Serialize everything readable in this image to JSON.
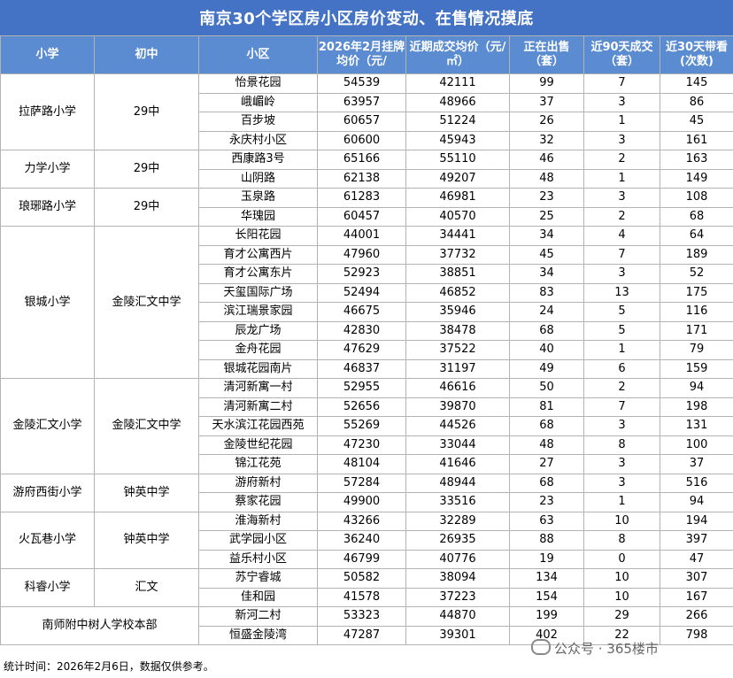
{
  "title": "南京30个学区房小区房价变动、在售情况摸底",
  "headers": {
    "primary": "小学",
    "middle": "初中",
    "community": "小区",
    "listing_price": "2026年2月挂牌均价（元/",
    "deal_price": "近期成交均价（元/㎡）",
    "on_sale": "正在出售（套）",
    "deals_90": "近90天成交（套）",
    "visits_30": "近30天带看(次数)"
  },
  "groups": [
    {
      "primary": "拉萨路小学",
      "middle": "29中",
      "rows": [
        [
          "怡景花园",
          "54539",
          "42111",
          "99",
          "7",
          "145"
        ],
        [
          "峨嵋岭",
          "63957",
          "48966",
          "37",
          "3",
          "86"
        ],
        [
          "百步坡",
          "60657",
          "51224",
          "26",
          "1",
          "45"
        ],
        [
          "永庆村小区",
          "60600",
          "45943",
          "32",
          "3",
          "161"
        ]
      ]
    },
    {
      "primary": "力学小学",
      "middle": "29中",
      "rows": [
        [
          "西康路3号",
          "65166",
          "55110",
          "46",
          "2",
          "163"
        ],
        [
          "山阴路",
          "62138",
          "49207",
          "48",
          "1",
          "149"
        ]
      ]
    },
    {
      "primary": "琅琊路小学",
      "middle": "29中",
      "rows": [
        [
          "玉泉路",
          "61283",
          "46981",
          "23",
          "3",
          "108"
        ],
        [
          "华瑰园",
          "60457",
          "40570",
          "25",
          "2",
          "68"
        ]
      ]
    },
    {
      "primary": "银城小学",
      "middle": "金陵汇文中学",
      "rows": [
        [
          "长阳花园",
          "44001",
          "34441",
          "34",
          "4",
          "64"
        ],
        [
          "育才公寓西片",
          "47960",
          "37732",
          "45",
          "7",
          "189"
        ],
        [
          "育才公寓东片",
          "52923",
          "38851",
          "34",
          "3",
          "52"
        ],
        [
          "天玺国际广场",
          "52494",
          "46852",
          "83",
          "13",
          "175"
        ],
        [
          "滨江瑞景家园",
          "46675",
          "35946",
          "24",
          "5",
          "116"
        ],
        [
          "辰龙广场",
          "42830",
          "38478",
          "68",
          "5",
          "171"
        ],
        [
          "金舟花园",
          "47629",
          "37522",
          "40",
          "1",
          "79"
        ],
        [
          "银城花园南片",
          "46837",
          "31197",
          "49",
          "6",
          "159"
        ]
      ]
    },
    {
      "primary": "金陵汇文小学",
      "middle": "金陵汇文中学",
      "rows": [
        [
          "清河新寓一村",
          "52955",
          "46616",
          "50",
          "2",
          "94"
        ],
        [
          "清河新寓二村",
          "52656",
          "39870",
          "81",
          "7",
          "198"
        ],
        [
          "天水滨江花园西苑",
          "55269",
          "44526",
          "68",
          "3",
          "131"
        ],
        [
          "金陵世纪花园",
          "47230",
          "33044",
          "48",
          "8",
          "100"
        ],
        [
          "锦江花苑",
          "48104",
          "41646",
          "27",
          "3",
          "37"
        ]
      ]
    },
    {
      "primary": "游府西街小学",
      "middle": "钟英中学",
      "rows": [
        [
          "游府新村",
          "57284",
          "48944",
          "68",
          "3",
          "516"
        ],
        [
          "蔡家花园",
          "49900",
          "33516",
          "23",
          "1",
          "94"
        ]
      ]
    },
    {
      "primary": "火瓦巷小学",
      "middle": "钟英中学",
      "rows": [
        [
          "淮海新村",
          "43266",
          "32289",
          "63",
          "10",
          "194"
        ],
        [
          "武学园小区",
          "36240",
          "26935",
          "88",
          "8",
          "397"
        ],
        [
          "益乐村小区",
          "46799",
          "40776",
          "19",
          "0",
          "47"
        ]
      ]
    },
    {
      "primary": "科睿小学",
      "middle": "汇文",
      "rows": [
        [
          "苏宁睿城",
          "50582",
          "38094",
          "134",
          "10",
          "307"
        ],
        [
          "佳和园",
          "41578",
          "37223",
          "154",
          "10",
          "167"
        ]
      ]
    },
    {
      "primary": "南师附中树人学校本部",
      "middle": "",
      "merged": true,
      "rows": [
        [
          "新河二村",
          "53323",
          "44870",
          "199",
          "29",
          "266"
        ],
        [
          "恒盛金陵湾",
          "47287",
          "39301",
          "402",
          "22",
          "798"
        ]
      ]
    }
  ],
  "footer": "统计时间：2026年2月6日，数据仅供参考。",
  "watermark": "公众号 · 365楼市",
  "colors": {
    "header_bg": "#5b8bd0",
    "title_bg": "#4472c4",
    "border": "#b3b3b3"
  }
}
